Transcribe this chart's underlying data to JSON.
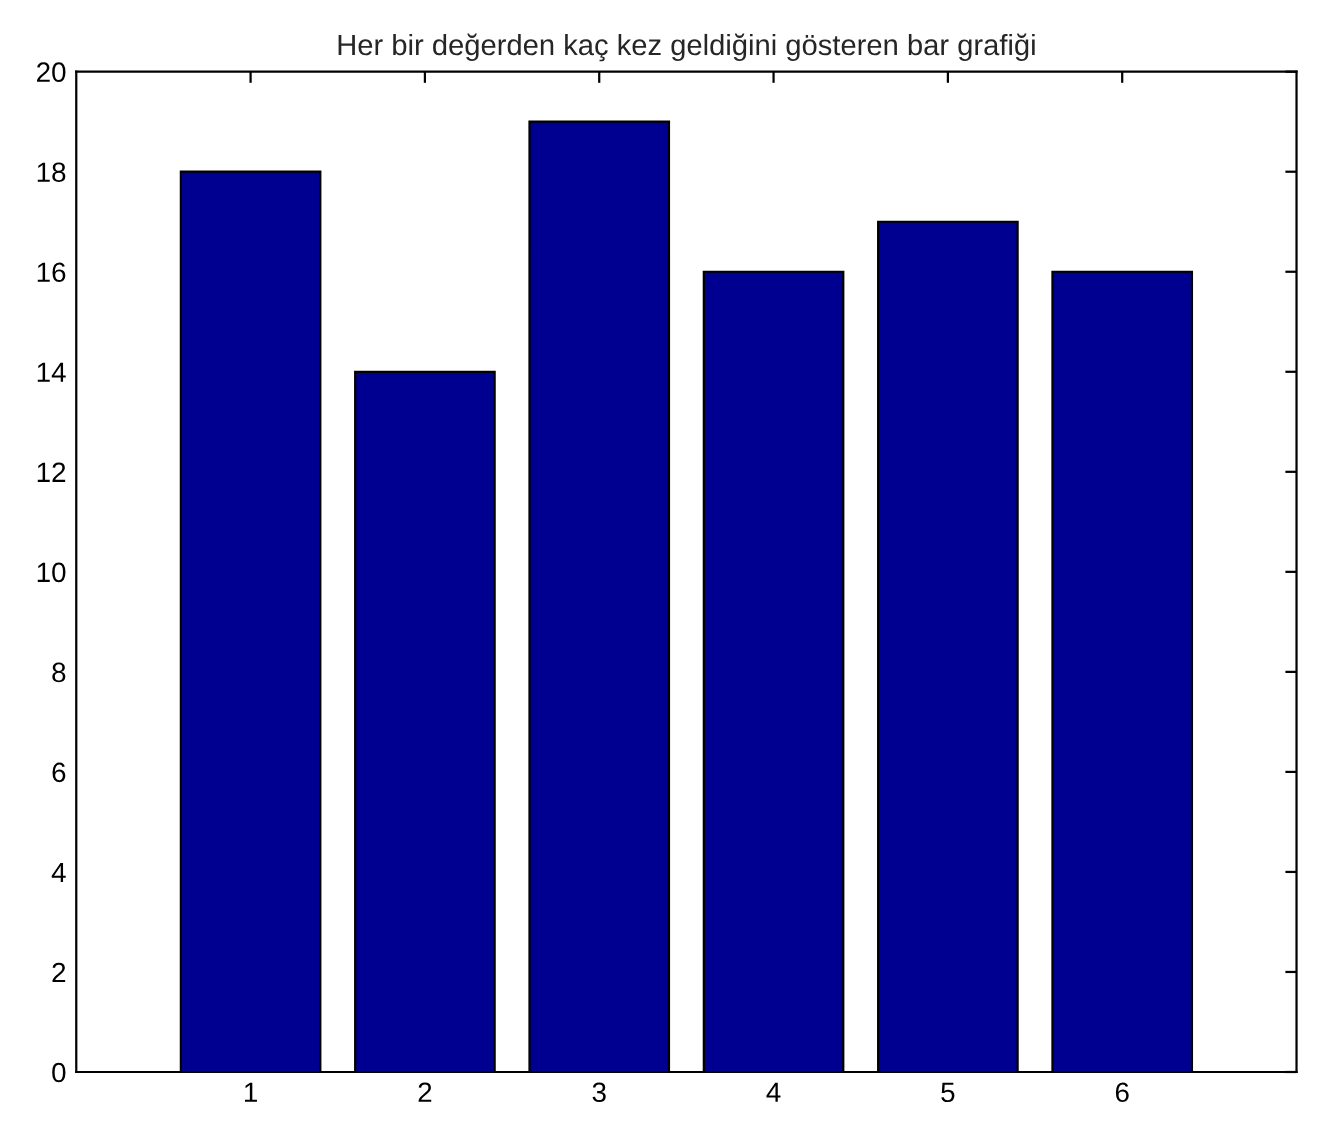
{
  "chart_data": {
    "type": "bar",
    "title": "Her bir değerden kaç kez geldiğini gösteren bar grafiği",
    "categories": [
      "1",
      "2",
      "3",
      "4",
      "5",
      "6"
    ],
    "values": [
      18,
      14,
      19,
      16,
      17,
      16
    ],
    "color": "#000090",
    "ylim": [
      0,
      20
    ],
    "yticks": [
      0,
      2,
      4,
      6,
      8,
      10,
      12,
      14,
      16,
      18,
      20
    ],
    "grid": false
  }
}
